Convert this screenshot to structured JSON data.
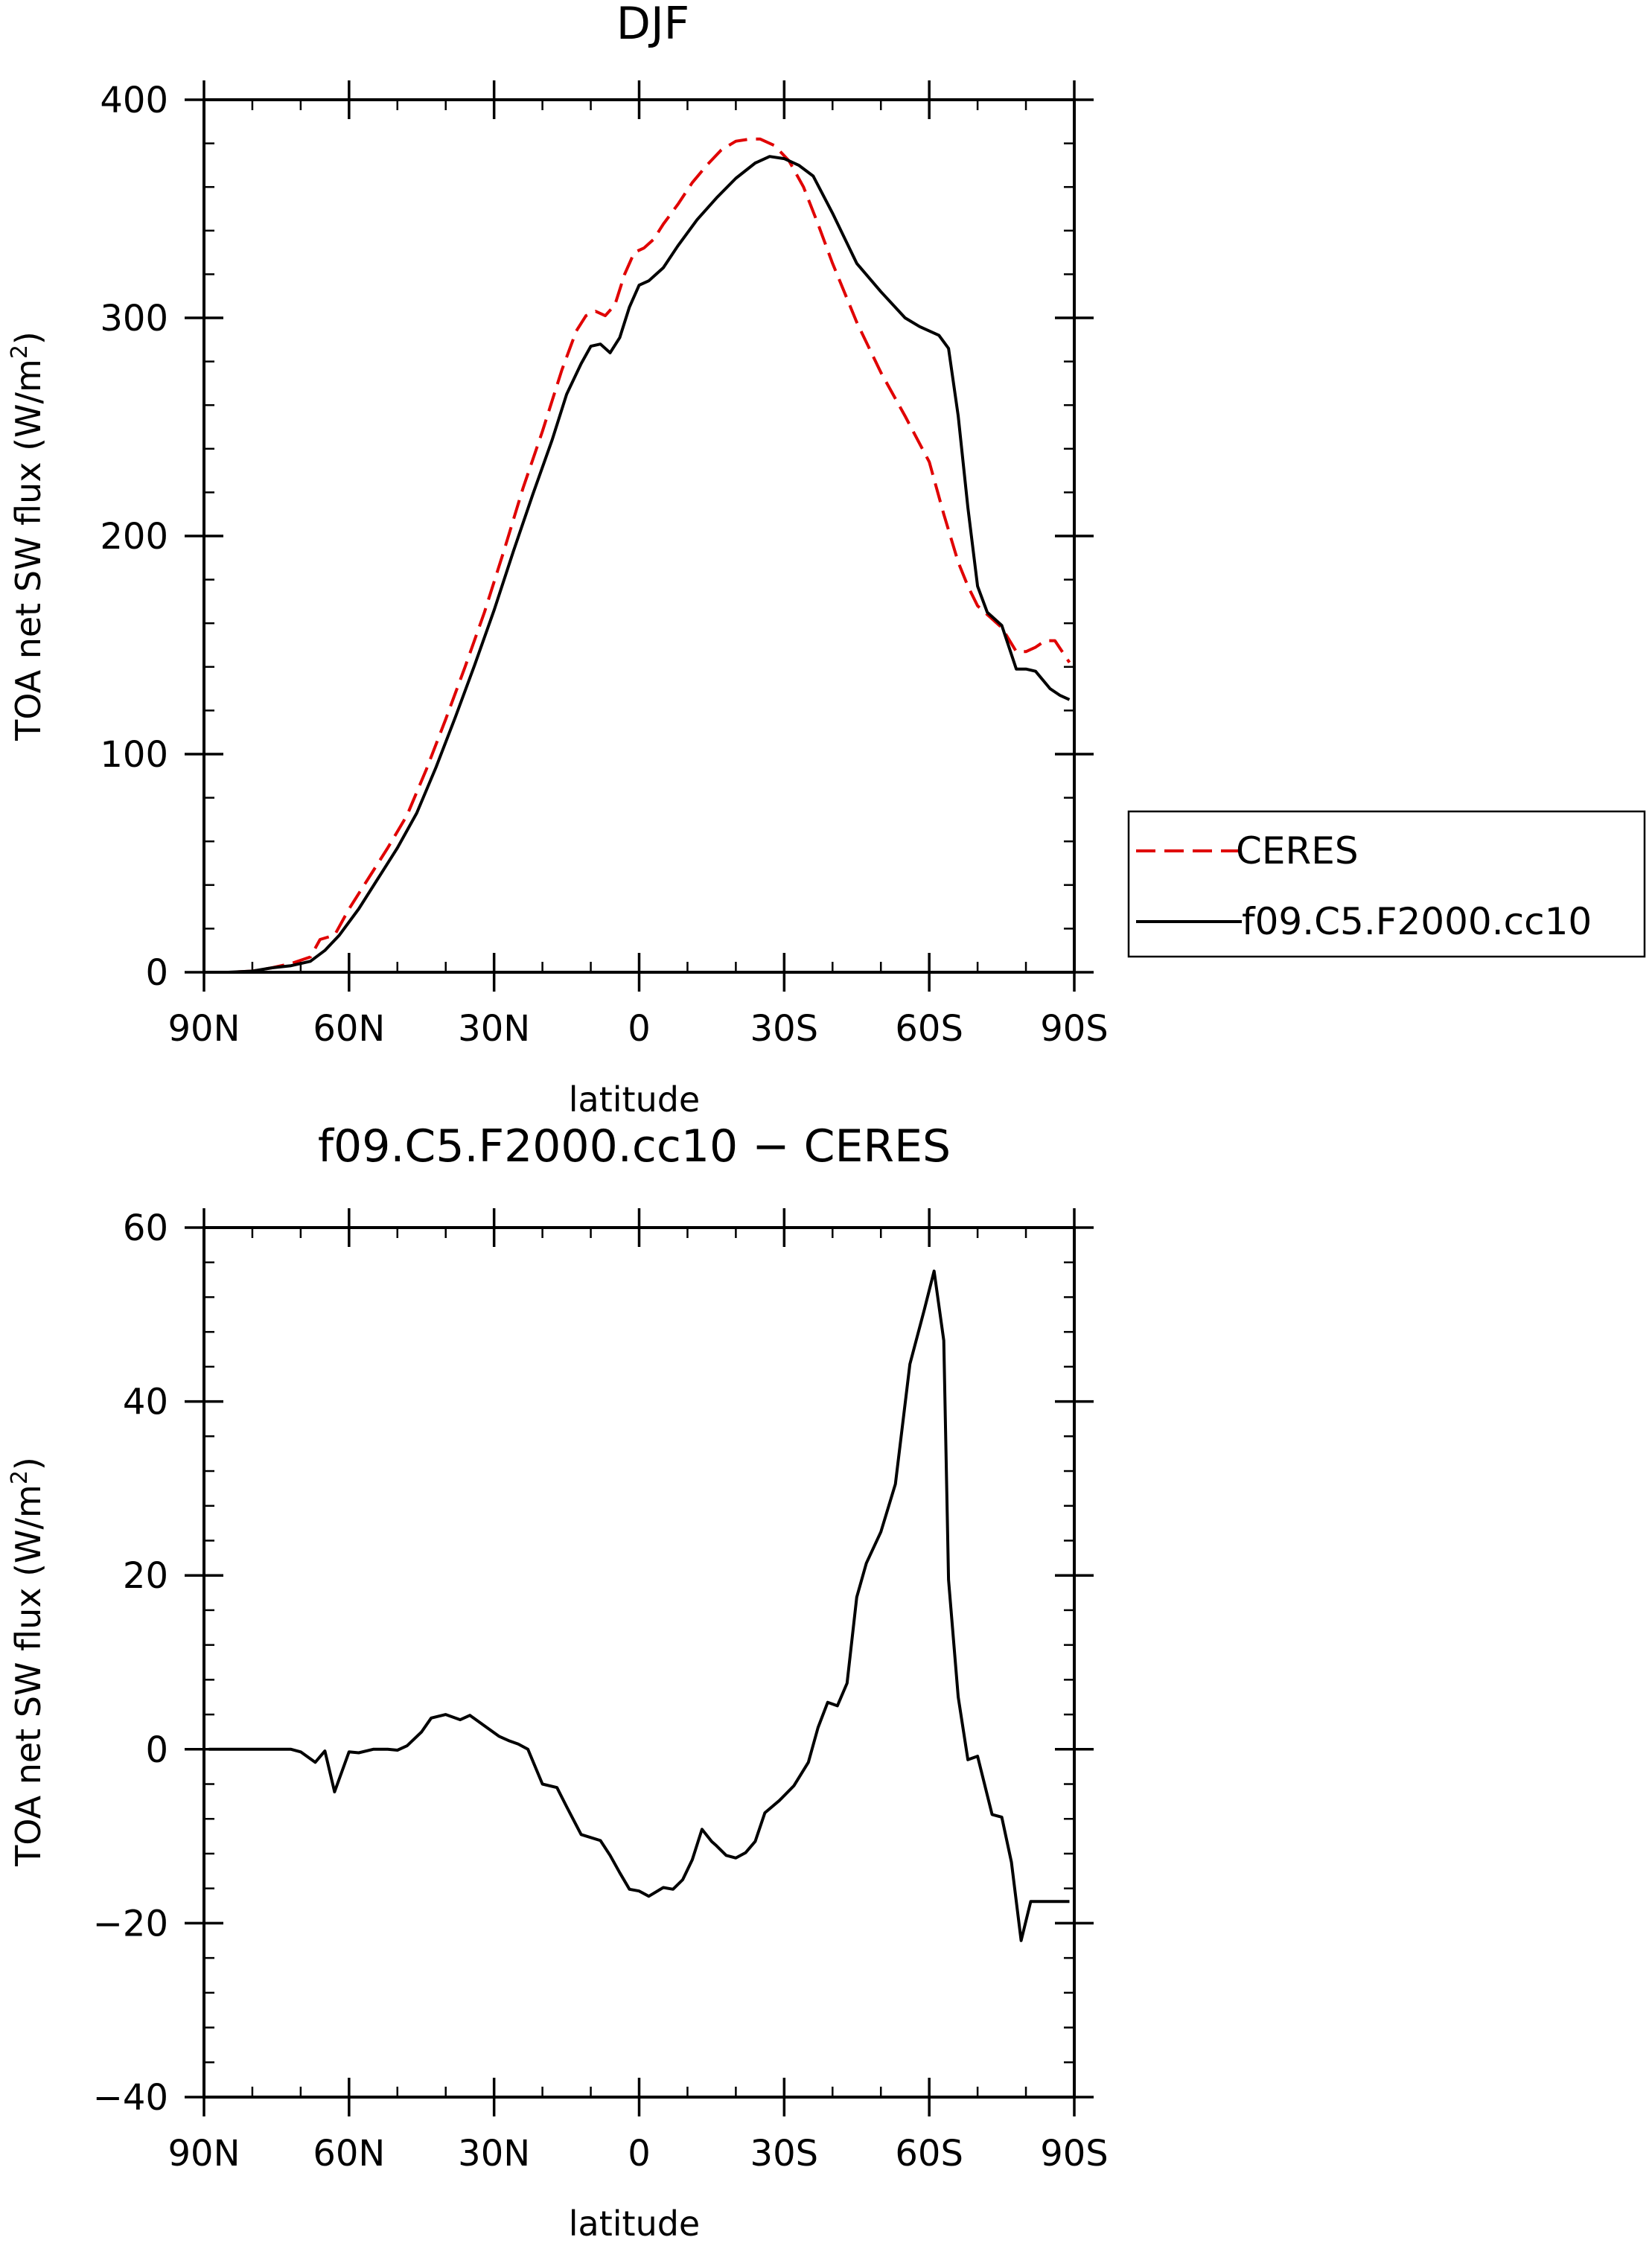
{
  "chart_data": [
    {
      "type": "line",
      "title": "DJF",
      "xlabel": "latitude",
      "ylabel": "TOA net SW flux (W/m²)",
      "ylabel_parts": {
        "main": "TOA net SW flux (W/m",
        "sup": "2",
        "end": ")"
      },
      "xlim": [
        -90,
        90
      ],
      "ylim": [
        0,
        400
      ],
      "yticks": [
        0,
        100,
        200,
        300,
        400
      ],
      "ytick_labels": [
        "0",
        "100",
        "200",
        "300",
        "400"
      ],
      "xticks": [
        -90,
        -60,
        -30,
        0,
        30,
        60,
        90
      ],
      "xtick_labels": [
        "90N",
        "60N",
        "30N",
        "0",
        "30S",
        "60S",
        "90S"
      ],
      "grid": false,
      "legend_position": "right",
      "series": [
        {
          "name": "CERES",
          "color": "#e00000",
          "dash": "dashed",
          "x": [
            -89,
            -85,
            -80,
            -76,
            -72,
            -68,
            -66,
            -63,
            -60,
            -56,
            -52,
            -48,
            -44,
            -40,
            -36,
            -32,
            -28,
            -24,
            -20,
            -16,
            -13,
            -11,
            -9,
            -7,
            -5,
            -3,
            -1,
            1,
            3,
            5,
            8,
            11,
            14,
            17,
            20,
            23,
            25,
            28,
            31,
            34,
            37,
            40,
            45,
            50,
            55,
            60,
            63,
            66,
            68,
            70,
            72,
            75,
            78,
            80,
            82,
            84,
            86,
            89
          ],
          "values": [
            0,
            0,
            0.5,
            2,
            4,
            7,
            15,
            17,
            29,
            43,
            57,
            72,
            93,
            116,
            140,
            165,
            193,
            222,
            248,
            276,
            294,
            301,
            303,
            301,
            306,
            320,
            330,
            332,
            336,
            343,
            352,
            362,
            370,
            377,
            381,
            382,
            382,
            379,
            372,
            360,
            343,
            325,
            298,
            275,
            255,
            234,
            210,
            188,
            177,
            168,
            164,
            158,
            147,
            147,
            149,
            152,
            152,
            142
          ]
        },
        {
          "name": "f09.C5.F2000.cc10",
          "color": "#000000",
          "dash": "solid",
          "x": [
            -89,
            -85,
            -80,
            -76,
            -72,
            -68,
            -65,
            -62,
            -58,
            -54,
            -50,
            -46,
            -42,
            -38,
            -34,
            -30,
            -26,
            -22,
            -18,
            -15,
            -12,
            -10,
            -8,
            -6,
            -4,
            -2,
            0,
            2,
            5,
            8,
            12,
            16,
            20,
            24,
            27,
            30,
            33,
            36,
            40,
            45,
            50,
            55,
            58,
            62,
            64,
            66,
            68,
            70,
            72,
            75,
            78,
            80,
            82,
            85,
            87,
            89
          ],
          "values": [
            0,
            0,
            0.5,
            2,
            3,
            5,
            10,
            17,
            29,
            43,
            57,
            73,
            94,
            117,
            141,
            166,
            193,
            219,
            244,
            265,
            279,
            287,
            288,
            284,
            291,
            305,
            315,
            317,
            323,
            333,
            345,
            355,
            364,
            371,
            374,
            373,
            370,
            365,
            348,
            325,
            312,
            300,
            296,
            292,
            286,
            255,
            213,
            177,
            165,
            159,
            139,
            139,
            138,
            130,
            127,
            125
          ]
        }
      ]
    },
    {
      "type": "line",
      "title": "f09.C5.F2000.cc10 − CERES",
      "xlabel": "latitude",
      "ylabel": "TOA net SW flux (W/m²)",
      "ylabel_parts": {
        "main": "TOA net SW flux (W/m",
        "sup": "2",
        "end": ")"
      },
      "xlim": [
        -90,
        90
      ],
      "ylim": [
        -40,
        60
      ],
      "yticks": [
        -40,
        -20,
        0,
        20,
        40,
        60
      ],
      "ytick_labels": [
        "−40",
        "−20",
        "0",
        "20",
        "40",
        "60"
      ],
      "xticks": [
        -90,
        -60,
        -30,
        0,
        30,
        60,
        90
      ],
      "xtick_labels": [
        "90N",
        "60N",
        "30N",
        "0",
        "30S",
        "60S",
        "90S"
      ],
      "grid": false,
      "series": [
        {
          "name": "f09.C5.F2000.cc10 − CERES",
          "color": "#000000",
          "dash": "solid",
          "x": [
            -89,
            -85,
            -80,
            -76,
            -74,
            -72,
            -70,
            -67,
            -65,
            -63,
            -60,
            -58,
            -55,
            -52,
            -50,
            -48,
            -45,
            -43,
            -40,
            -37,
            -35,
            -32,
            -29,
            -27,
            -25,
            -23,
            -20,
            -17,
            -15,
            -12,
            -8,
            -6,
            -4,
            -2,
            0,
            2,
            5,
            7,
            9,
            11,
            13,
            15,
            16,
            18,
            20,
            22,
            24,
            26,
            29,
            32,
            35,
            37,
            39,
            41,
            43,
            45,
            47,
            50,
            53,
            56,
            59,
            61,
            63,
            64,
            66,
            68,
            70,
            73,
            75,
            77,
            79,
            81,
            83,
            85,
            87,
            89
          ],
          "values": [
            0,
            0,
            0,
            0,
            0,
            0,
            -0.3,
            -1.5,
            -0.2,
            -4.9,
            -0.3,
            -0.4,
            0,
            0,
            -0.1,
            0.4,
            2,
            3.6,
            4,
            3.4,
            3.9,
            2.7,
            1.5,
            1,
            0.6,
            0,
            -4,
            -4.4,
            -6.6,
            -9.8,
            -10.5,
            -12.2,
            -14.2,
            -16.1,
            -16.3,
            -16.9,
            -15.9,
            -16.1,
            -15,
            -12.7,
            -9.2,
            -10.6,
            -11.1,
            -12.2,
            -12.5,
            -11.9,
            -10.6,
            -7.3,
            -5.9,
            -4.2,
            -1.5,
            2.5,
            5.4,
            5,
            7.6,
            17.5,
            21.4,
            25,
            30.5,
            44.3,
            50.6,
            55,
            47,
            19.5,
            6,
            -1.2,
            -0.8,
            -7.5,
            -7.8,
            -13,
            -22,
            -17.5,
            -17.5,
            -17.5,
            -17.5,
            -17.5
          ]
        }
      ]
    }
  ]
}
